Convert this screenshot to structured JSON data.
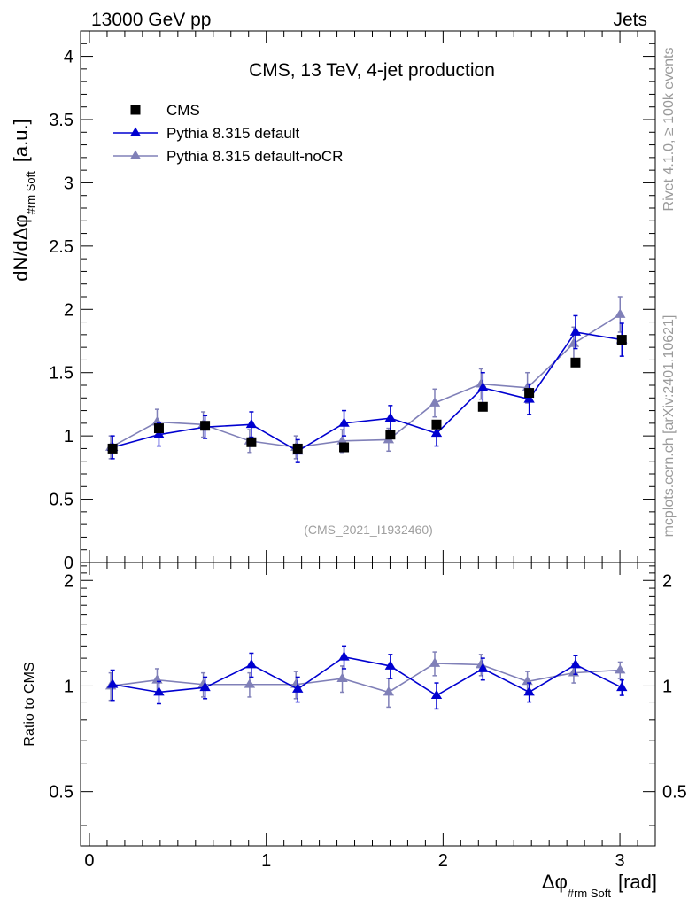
{
  "header": {
    "left": "13000 GeV pp",
    "right": "Jets"
  },
  "side_labels": {
    "rivet": "Rivet 4.1.0, ≥ 100k events",
    "mcplots": "mcplots.cern.ch [arXiv:2401.10621]"
  },
  "chart_data": [
    {
      "type": "scatter",
      "title": "CMS, 13 TeV, 4-jet production",
      "analysis_tag": "(CMS_2021_I1932460)",
      "ylabel": "dN/dΔφ",
      "ylabel_sub": "#rm Soft",
      "ylabel_unit": "[a.u.]",
      "xlim": [
        -0.05,
        3.2
      ],
      "ylim": [
        0,
        4.2
      ],
      "yticks": [
        "0",
        "0.5",
        "1",
        "1.5",
        "2",
        "2.5",
        "3",
        "3.5",
        "4"
      ],
      "x": [
        0.131,
        0.393,
        0.654,
        0.916,
        1.178,
        1.44,
        1.702,
        1.963,
        2.225,
        2.487,
        2.749,
        3.011
      ],
      "series": [
        {
          "name": "CMS",
          "color": "#000000",
          "marker": "square",
          "values": [
            0.9,
            1.06,
            1.08,
            0.95,
            0.9,
            0.91,
            1.01,
            1.09,
            1.23,
            1.34,
            1.58,
            1.76
          ],
          "errors": [
            0.02,
            0.02,
            0.02,
            0.02,
            0.02,
            0.02,
            0.02,
            0.02,
            0.02,
            0.02,
            0.02,
            0.02
          ]
        },
        {
          "name": "Pythia 8.315 default",
          "color": "#0000d0",
          "marker": "triangle",
          "values": [
            0.91,
            1.01,
            1.07,
            1.09,
            0.88,
            1.1,
            1.14,
            1.02,
            1.38,
            1.29,
            1.82,
            1.76
          ],
          "errors": [
            0.09,
            0.09,
            0.09,
            0.1,
            0.09,
            0.1,
            0.1,
            0.1,
            0.12,
            0.12,
            0.13,
            0.13
          ]
        },
        {
          "name": "Pythia 8.315 default-noCR",
          "color": "#8080b8",
          "marker": "triangle",
          "values": [
            0.91,
            1.11,
            1.09,
            0.96,
            0.91,
            0.96,
            0.97,
            1.26,
            1.41,
            1.38,
            1.73,
            1.96
          ],
          "errors": [
            0.09,
            0.1,
            0.1,
            0.09,
            0.09,
            0.09,
            0.09,
            0.11,
            0.12,
            0.12,
            0.13,
            0.14
          ]
        }
      ]
    },
    {
      "type": "scatter",
      "ylabel": "Ratio to CMS",
      "xlabel": "Δφ",
      "xlabel_sub": "#rm Soft",
      "xlabel_unit": "[rad]",
      "xlim": [
        -0.05,
        3.2
      ],
      "ylim": [
        0.35,
        2.25
      ],
      "yticks": [
        "0.5",
        "1",
        "2"
      ],
      "xticks": [
        "0",
        "1",
        "2",
        "3"
      ],
      "x": [
        0.131,
        0.393,
        0.654,
        0.916,
        1.178,
        1.44,
        1.702,
        1.963,
        2.225,
        2.487,
        2.749,
        3.011
      ],
      "series": [
        {
          "name": "Pythia 8.315 default",
          "color": "#0000d0",
          "marker": "triangle",
          "values": [
            1.01,
            0.96,
            0.99,
            1.15,
            0.98,
            1.21,
            1.14,
            0.94,
            1.12,
            0.96,
            1.15,
            0.99
          ],
          "errors": [
            0.1,
            0.07,
            0.07,
            0.09,
            0.08,
            0.09,
            0.09,
            0.08,
            0.08,
            0.06,
            0.07,
            0.05
          ]
        },
        {
          "name": "Pythia 8.315 default-noCR",
          "color": "#8080b8",
          "marker": "triangle",
          "values": [
            1.0,
            1.04,
            1.01,
            1.01,
            1.01,
            1.05,
            0.96,
            1.16,
            1.15,
            1.03,
            1.09,
            1.11
          ],
          "errors": [
            0.09,
            0.08,
            0.08,
            0.08,
            0.09,
            0.09,
            0.09,
            0.09,
            0.08,
            0.07,
            0.07,
            0.06
          ]
        }
      ]
    }
  ]
}
